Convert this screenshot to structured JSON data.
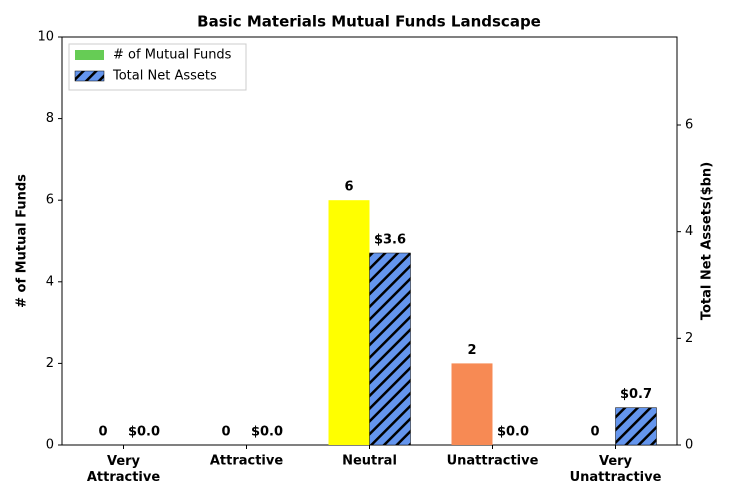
{
  "chart_data": {
    "type": "bar",
    "title": "Basic Materials Mutual Funds Landscape",
    "y_label": "# of Mutual Funds",
    "y2_label": "Total Net Assets($bn)",
    "categories": [
      "Very\nAttractive",
      "Attractive",
      "Neutral",
      "Unattractive",
      "Very\nUnattractive"
    ],
    "series": [
      {
        "name": "# of Mutual Funds",
        "color": "#66cc55",
        "colors": [
          "#66cc55",
          "#66cc55",
          "#ffff00",
          "#f78a54",
          "#66cc55"
        ],
        "values": [
          0,
          0,
          6,
          2,
          0
        ]
      },
      {
        "name": "Total Net Assets",
        "color": "#6495ed",
        "hatch": true,
        "axis": "y2",
        "values": [
          0,
          0,
          3.6,
          0,
          0.7
        ],
        "value_labels": [
          "$0.0",
          "$0.0",
          "$3.6",
          "$0.0",
          "$0.7"
        ]
      }
    ],
    "ylim": [
      0,
      10
    ],
    "yticks": [
      0,
      2,
      4,
      6,
      8,
      10
    ],
    "y2lim": [
      0,
      7.65
    ],
    "y2ticks": [
      0,
      2,
      4,
      6
    ],
    "legend": "upper-left",
    "grid": false
  }
}
